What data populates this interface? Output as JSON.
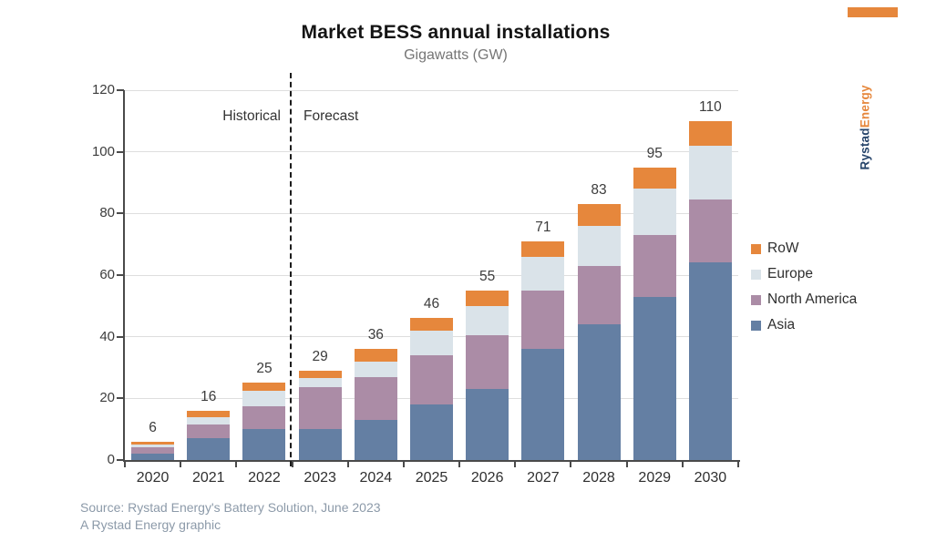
{
  "title": "Market BESS annual installations",
  "subtitle": "Gigawatts (GW)",
  "annotations": {
    "historical_label": "Historical",
    "forecast_label": "Forecast"
  },
  "branding": {
    "wordmark_primary": "Rystad",
    "wordmark_secondary": "Energy",
    "navy_color": "#27456b",
    "accent_color": "#e6873c"
  },
  "legend": [
    {
      "label": "RoW",
      "color": "#e6873c"
    },
    {
      "label": "Europe",
      "color": "#dae3e9"
    },
    {
      "label": "North America",
      "color": "#ab8ca6"
    },
    {
      "label": "Asia",
      "color": "#647fa3"
    }
  ],
  "source": {
    "line1": "Source: Rystad Energy's Battery Solution, June 2023",
    "line2": "A Rystad Energy graphic"
  },
  "chart_data": {
    "type": "bar",
    "stacked": true,
    "title": "Market BESS annual installations",
    "unit": "Gigawatts (GW)",
    "categories": [
      "2020",
      "2021",
      "2022",
      "2023",
      "2024",
      "2025",
      "2026",
      "2027",
      "2028",
      "2029",
      "2030"
    ],
    "series": [
      {
        "name": "Asia",
        "color": "#647fa3",
        "values": [
          2,
          7,
          10,
          10,
          13,
          18,
          23,
          36,
          44,
          53,
          64
        ]
      },
      {
        "name": "North America",
        "color": "#ab8ca6",
        "values": [
          2,
          4.5,
          7.5,
          13.5,
          14,
          16,
          17.5,
          19,
          19,
          20,
          20.5
        ]
      },
      {
        "name": "Europe",
        "color": "#dae3e9",
        "values": [
          1,
          2.5,
          5,
          3,
          5,
          8,
          9.5,
          11,
          13,
          15,
          17.5
        ]
      },
      {
        "name": "RoW",
        "color": "#e6873c",
        "values": [
          1,
          2,
          2.5,
          2.5,
          4,
          4,
          5,
          5,
          7,
          7,
          8
        ]
      }
    ],
    "totals": [
      6,
      16,
      25,
      29,
      36,
      46,
      55,
      71,
      83,
      95,
      110
    ],
    "ylim": [
      0,
      120
    ],
    "yticks": [
      0,
      20,
      40,
      60,
      80,
      100,
      120
    ],
    "grid": true,
    "legend_position": "right",
    "divider_after_category": "2022",
    "divider_labels": [
      "Historical",
      "Forecast"
    ]
  }
}
